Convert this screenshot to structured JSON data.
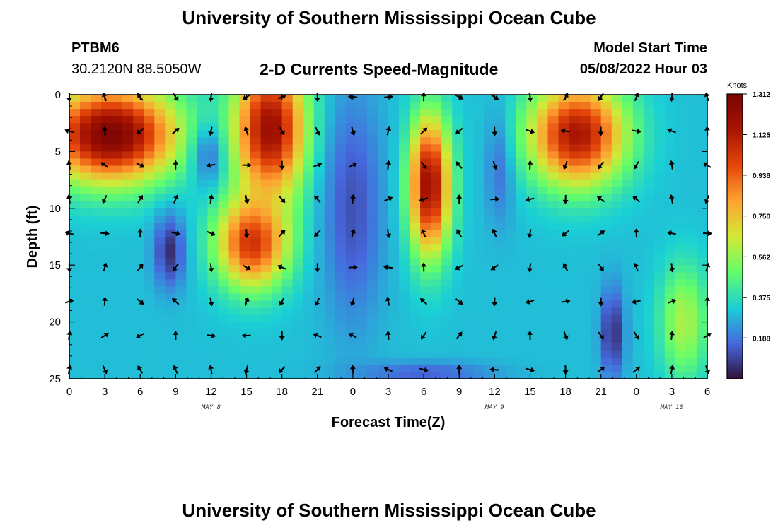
{
  "header": {
    "title": "University of Southern Mississippi Ocean Cube",
    "station_id": "PTBM6",
    "station_coords": "30.2120N  88.5050W",
    "subtitle": "2-D Currents Speed-Magnitude",
    "model_start_label": "Model Start Time",
    "model_start_value": "05/08/2022 Hour 03"
  },
  "footer": {
    "title": "University of Southern Mississippi Ocean Cube"
  },
  "chart_data": {
    "type": "heatmap",
    "xlabel": "Forecast Time(Z)",
    "ylabel": "Depth (ft)",
    "x_tick_labels": [
      "0",
      "3",
      "6",
      "9",
      "12",
      "15",
      "18",
      "21",
      "0",
      "3",
      "6",
      "9",
      "12",
      "15",
      "18",
      "21",
      "0",
      "3",
      "6"
    ],
    "y_tick_labels": [
      "0",
      "5",
      "10",
      "15",
      "20",
      "25"
    ],
    "y_ticks": [
      0,
      5,
      10,
      15,
      20,
      25
    ],
    "x_range_hours": [
      0,
      54
    ],
    "ylim": [
      0,
      25
    ],
    "day_labels": [
      {
        "text": "MAY 8",
        "hour": 12
      },
      {
        "text": "MAY 9",
        "hour": 36
      },
      {
        "text": "MAY 10",
        "hour": 51
      }
    ],
    "colorbar": {
      "title": "Knots",
      "tick_labels": [
        "1.312",
        "1.125",
        "0.938",
        "0.750",
        "0.562",
        "0.375",
        "0.188"
      ],
      "ticks": [
        1.312,
        1.125,
        0.938,
        0.75,
        0.562,
        0.375,
        0.188
      ],
      "range": [
        0,
        1.312
      ],
      "colors": [
        "#30123b",
        "#4669de",
        "#1ad0d5",
        "#64fd6a",
        "#d2e935",
        "#fea331",
        "#e4460a",
        "#a81402",
        "#7a0403"
      ]
    },
    "features": [
      {
        "hour": 3.5,
        "depth": 3.5,
        "speed": 1.3,
        "spread_h": 5.5,
        "spread_d": 4.2
      },
      {
        "hour": 8.5,
        "depth": 13.8,
        "speed": 0.05,
        "spread_h": 1.3,
        "spread_d": 3.2
      },
      {
        "hour": 12,
        "depth": 5.5,
        "speed": 0.15,
        "spread_h": 1.5,
        "spread_d": 3
      },
      {
        "hour": 17,
        "depth": 3,
        "speed": 1.2,
        "spread_h": 3,
        "spread_d": 6
      },
      {
        "hour": 15.5,
        "depth": 13,
        "speed": 1.05,
        "spread_h": 3,
        "spread_d": 4
      },
      {
        "hour": 24,
        "depth": 10,
        "speed": 0.12,
        "spread_h": 2.5,
        "spread_d": 10
      },
      {
        "hour": 30.5,
        "depth": 8,
        "speed": 1.2,
        "spread_h": 1.7,
        "spread_d": 6
      },
      {
        "hour": 36.5,
        "depth": 6,
        "speed": 0.15,
        "spread_h": 1.2,
        "spread_d": 5
      },
      {
        "hour": 43,
        "depth": 3.5,
        "speed": 1.15,
        "spread_h": 4,
        "spread_d": 4.5
      },
      {
        "hour": 46,
        "depth": 21,
        "speed": 0.05,
        "spread_h": 1,
        "spread_d": 4
      },
      {
        "hour": 30,
        "depth": 24.5,
        "speed": 0.15,
        "spread_h": 6,
        "spread_d": 1
      },
      {
        "hour": 52,
        "depth": 20,
        "speed": 0.6,
        "spread_h": 2,
        "spread_d": 5
      }
    ],
    "base_speed": 0.3
  }
}
